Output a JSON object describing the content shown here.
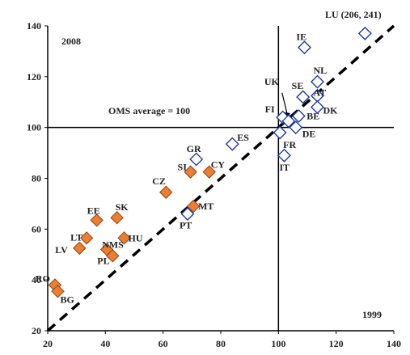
{
  "chart_data": {
    "type": "scatter",
    "xlim": [
      20,
      140
    ],
    "ylim": [
      20,
      140
    ],
    "x_ticks": [
      20,
      40,
      60,
      80,
      100,
      120,
      140
    ],
    "y_ticks": [
      20,
      40,
      60,
      80,
      100,
      120,
      140
    ],
    "grid": false,
    "reference_lines": {
      "x": 100,
      "y": 100,
      "diagonal": "y = x (dashed)"
    },
    "annotations": {
      "top_left": "2008",
      "bottom_right": "1999",
      "average": "OMS average = 100",
      "lu_outlier": "LU (206, 241)"
    },
    "series": [
      {
        "marker": "filled-diamond",
        "color": "#ED7D31",
        "points": [
          {
            "label": "RO",
            "x": 22.5,
            "y": 38
          },
          {
            "label": "BG",
            "x": 23.5,
            "y": 35.5
          },
          {
            "label": "LV",
            "x": 31,
            "y": 52.5
          },
          {
            "label": "LT",
            "x": 33.5,
            "y": 56.5
          },
          {
            "label": "EE",
            "x": 37,
            "y": 63.5
          },
          {
            "label": "SK",
            "x": 44,
            "y": 64.5
          },
          {
            "label": "NMS",
            "x": 40.5,
            "y": 52
          },
          {
            "label": "PL",
            "x": 42.5,
            "y": 49.5
          },
          {
            "label": "HU",
            "x": 46.5,
            "y": 56.5
          },
          {
            "label": "CZ",
            "x": 61,
            "y": 74.5
          },
          {
            "label": "SI",
            "x": 69.5,
            "y": 82.5
          },
          {
            "label": "CY",
            "x": 76,
            "y": 82.5
          },
          {
            "label": "MT",
            "x": 70.5,
            "y": 69
          }
        ]
      },
      {
        "marker": "open-diamond",
        "color": "#1F3A9E",
        "points": [
          {
            "label": "PT",
            "x": 68.5,
            "y": 66
          },
          {
            "label": "GR",
            "x": 71.5,
            "y": 87.5
          },
          {
            "label": "ES",
            "x": 84,
            "y": 93.5
          },
          {
            "label": "IT",
            "x": 102,
            "y": 89
          },
          {
            "label": "FR",
            "x": 100.5,
            "y": 98
          },
          {
            "label": "FI",
            "x": 101.5,
            "y": 104
          },
          {
            "label": "UK",
            "x": 103.5,
            "y": 102.5
          },
          {
            "label": "DE",
            "x": 106,
            "y": 100
          },
          {
            "label": "BE",
            "x": 107,
            "y": 104.5
          },
          {
            "label": "SE",
            "x": 108.5,
            "y": 112
          },
          {
            "label": "IE",
            "x": 109,
            "y": 131.5
          },
          {
            "label": "NL",
            "x": 113.5,
            "y": 118
          },
          {
            "label": "AT",
            "x": 113.5,
            "y": 112.5
          },
          {
            "label": "DK",
            "x": 113.5,
            "y": 108
          },
          {
            "label": "LU",
            "x": 130,
            "y": 137
          }
        ]
      }
    ]
  }
}
